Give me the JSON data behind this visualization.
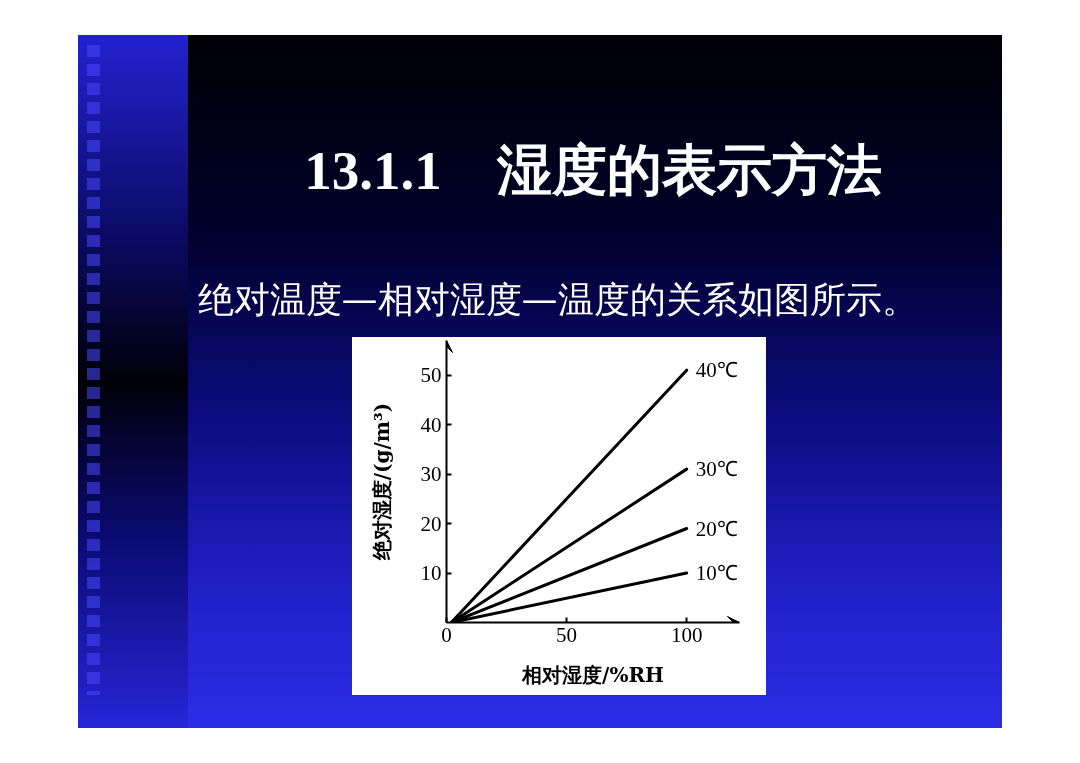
{
  "chart_data": {
    "type": "line",
    "title": "13.1.1　湿度的表示方法",
    "subtitle": "绝对温度—相对湿度—温度的关系如图所示。",
    "xlabel": "相对湿度/%RH",
    "ylabel": "绝对湿度/(g/m³)",
    "x": [
      2,
      100
    ],
    "series": [
      {
        "name": "40℃",
        "color": "#000000",
        "values": [
          0,
          51
        ]
      },
      {
        "name": "30℃",
        "color": "#000000",
        "values": [
          0,
          31
        ]
      },
      {
        "name": "20℃",
        "color": "#000000",
        "values": [
          0,
          19
        ]
      },
      {
        "name": "10℃",
        "color": "#000000",
        "values": [
          0,
          10
        ]
      }
    ],
    "xlim": [
      0,
      122
    ],
    "ylim": [
      0,
      57
    ],
    "xticks": [
      0,
      50,
      100
    ],
    "yticks": [
      10,
      20,
      30,
      40,
      50
    ],
    "line_style": "solid"
  }
}
